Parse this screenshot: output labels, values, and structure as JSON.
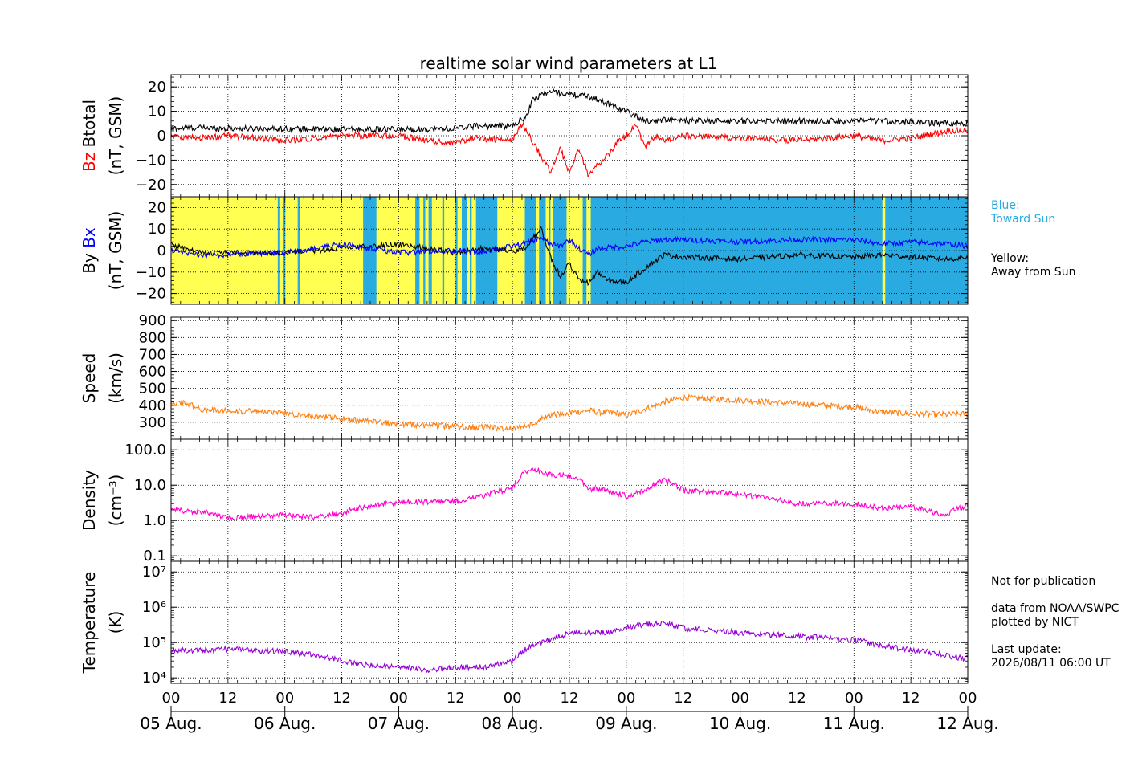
{
  "chart_data": {
    "title": "realtime solar wind parameters at L1",
    "type": "line",
    "x_axis": {
      "hour_ticks": [
        "00",
        "12",
        "00",
        "12",
        "00",
        "12",
        "00",
        "12",
        "00",
        "12",
        "00",
        "12",
        "00",
        "12",
        "00"
      ],
      "date_labels": [
        "05 Aug.",
        "06 Aug.",
        "07 Aug.",
        "08 Aug.",
        "09 Aug.",
        "10 Aug.",
        "11 Aug.",
        "12 Aug."
      ],
      "range_hours": [
        0,
        168
      ]
    },
    "panels": [
      {
        "id": "btotal-bz",
        "ylabel_parts": [
          {
            "text": "Bz",
            "color": "#ff0000"
          },
          {
            "text": "Btotal",
            "color": "#000000"
          }
        ],
        "ylabel_unit": "(nT, GSM)",
        "ylim": [
          -25,
          25
        ],
        "scale": "linear",
        "yticks": [
          -20,
          -10,
          0,
          10,
          20
        ],
        "ytick_labels": [
          "−20",
          "−10",
          "0",
          "10",
          "20"
        ],
        "series": [
          {
            "name": "Btotal",
            "color": "#000000",
            "x": [
              0,
              6,
              12,
              24,
              36,
              48,
              60,
              64,
              72,
              75,
              76,
              78,
              80,
              84,
              88,
              90,
              96,
              100,
              102,
              104,
              108,
              120,
              132,
              144,
              150,
              156,
              164,
              168
            ],
            "y": [
              3,
              3.2,
              3,
              2.8,
              2.5,
              2.5,
              2.8,
              4,
              4,
              8,
              14,
              17,
              18,
              17,
              16,
              15,
              10,
              6,
              6,
              6.5,
              6,
              6,
              6,
              6,
              6,
              5.5,
              5,
              5
            ]
          },
          {
            "name": "Bz",
            "color": "#ff0000",
            "x": [
              0,
              6,
              12,
              24,
              30,
              36,
              48,
              54,
              60,
              64,
              72,
              74,
              78,
              80,
              82,
              84,
              86,
              88,
              90,
              92,
              94,
              96,
              98,
              100,
              102,
              104,
              108,
              120,
              132,
              144,
              150,
              156,
              164,
              168
            ],
            "y": [
              0,
              -1,
              0,
              -2,
              -1,
              0,
              0,
              -2,
              -3,
              -1,
              -2,
              5,
              -8,
              -15,
              -5,
              -15,
              -5,
              -16,
              -12,
              -8,
              -3,
              0,
              5,
              -5,
              0,
              -2,
              0,
              -1,
              -2,
              0,
              -2,
              -1,
              2,
              2
            ]
          }
        ]
      },
      {
        "id": "by-bx",
        "ylabel_parts": [
          {
            "text": "By",
            "color": "#000000"
          },
          {
            "text": "Bx",
            "color": "#0000ff"
          }
        ],
        "ylabel_unit": "(nT, GSM)",
        "ylim": [
          -25,
          25
        ],
        "scale": "linear",
        "yticks": [
          -20,
          -10,
          0,
          10,
          20
        ],
        "ytick_labels": [
          "−20",
          "−10",
          "0",
          "10",
          "20"
        ],
        "background_bands": {
          "toward_color": "#29abe2",
          "away_color": "#ffff52",
          "toward_intervals_hours": [
            [
              22.5,
              23
            ],
            [
              23.6,
              24.1
            ],
            [
              26.7,
              27.2
            ],
            [
              40.5,
              43.3
            ],
            [
              51.5,
              52.4
            ],
            [
              53.2,
              53.6
            ],
            [
              54.3,
              55
            ],
            [
              57.2,
              57.6
            ],
            [
              60,
              60.4
            ],
            [
              61.3,
              62.4
            ],
            [
              63,
              63.4
            ],
            [
              64.3,
              68.8
            ],
            [
              74.6,
              77
            ],
            [
              77.6,
              79
            ],
            [
              79.6,
              80
            ],
            [
              80.6,
              83.4
            ],
            [
              86.8,
              87.6
            ],
            [
              88.5,
              150
            ],
            [
              150.6,
              168
            ]
          ]
        },
        "series": [
          {
            "name": "By",
            "color": "#000000",
            "x": [
              0,
              6,
              12,
              24,
              36,
              48,
              60,
              64,
              72,
              74,
              76,
              78,
              80,
              82,
              84,
              86,
              88,
              90,
              92,
              96,
              100,
              104,
              108,
              120,
              132,
              144,
              150,
              156,
              164,
              168
            ],
            "y": [
              3,
              -1,
              -1,
              -1,
              1,
              3,
              -1,
              1,
              0,
              0,
              5,
              10,
              -3,
              -12,
              -6,
              -14,
              -15,
              -10,
              -14,
              -15,
              -8,
              -2,
              -3,
              -4,
              -2,
              -3,
              -2,
              -3,
              -4,
              -3
            ]
          },
          {
            "name": "Bx",
            "color": "#0000ff",
            "x": [
              0,
              6,
              12,
              24,
              36,
              48,
              60,
              64,
              72,
              76,
              78,
              80,
              82,
              84,
              86,
              88,
              90,
              96,
              100,
              104,
              108,
              120,
              132,
              144,
              150,
              156,
              164,
              168
            ],
            "y": [
              0,
              -2,
              -2,
              -1,
              3,
              -1,
              0,
              -1,
              2,
              4,
              6,
              3,
              2,
              5,
              1,
              -2,
              1,
              2,
              4,
              5,
              5,
              4,
              5,
              5,
              3,
              4,
              3,
              2
            ]
          }
        ]
      },
      {
        "id": "speed",
        "ylabel_parts": [
          {
            "text": "Speed",
            "color": "#000000"
          }
        ],
        "ylabel_unit": "(km/s)",
        "ylim": [
          200,
          920
        ],
        "scale": "linear",
        "yticks": [
          300,
          400,
          500,
          600,
          700,
          800,
          900
        ],
        "ytick_labels": [
          "300",
          "400",
          "500",
          "600",
          "700",
          "800",
          "900"
        ],
        "series": [
          {
            "name": "Speed",
            "color": "#ff7f0e",
            "x": [
              0,
              4,
              6,
              12,
              24,
              36,
              48,
              60,
              66,
              72,
              76,
              80,
              84,
              88,
              90,
              94,
              96,
              100,
              102,
              104,
              108,
              112,
              120,
              132,
              144,
              150,
              156,
              164,
              168
            ],
            "y": [
              420,
              410,
              375,
              370,
              355,
              320,
              290,
              275,
              270,
              262,
              290,
              345,
              355,
              370,
              360,
              355,
              340,
              380,
              395,
              420,
              445,
              440,
              430,
              410,
              390,
              360,
              350,
              345,
              350
            ]
          }
        ]
      },
      {
        "id": "density",
        "ylabel_parts": [
          {
            "text": "Density",
            "color": "#000000"
          }
        ],
        "ylabel_unit": "(cm⁻³)",
        "ylim": [
          0.07,
          200
        ],
        "scale": "log",
        "yticks": [
          0.1,
          1.0,
          10.0,
          100.0
        ],
        "ytick_labels": [
          "0.1",
          "1.0",
          "10.0",
          "100.0"
        ],
        "series": [
          {
            "name": "Density",
            "color": "#ff00cc",
            "x": [
              0,
              6,
              12,
              24,
              30,
              36,
              42,
              48,
              54,
              60,
              66,
              72,
              76,
              80,
              84,
              86,
              88,
              92,
              96,
              100,
              104,
              108,
              120,
              132,
              144,
              150,
              156,
              162,
              164,
              168
            ],
            "y": [
              2,
              1.8,
              1.2,
              1.4,
              1.2,
              1.6,
              2.6,
              3.2,
              3.4,
              3.4,
              5,
              8,
              30,
              20,
              18,
              14,
              8,
              7,
              5,
              7,
              14,
              7,
              5.5,
              3,
              3,
              2.2,
              2.5,
              1.5,
              1.6,
              2.7
            ]
          }
        ]
      },
      {
        "id": "temperature",
        "ylabel_parts": [
          {
            "text": "Temperature",
            "color": "#000000"
          }
        ],
        "ylabel_unit": "(K)",
        "ylim": [
          7000,
          20000000
        ],
        "scale": "log",
        "yticks": [
          10000,
          100000,
          1000000,
          10000000
        ],
        "ytick_labels": [
          "10⁴",
          "10⁵",
          "10⁶",
          "10⁷"
        ],
        "series": [
          {
            "name": "Temperature",
            "color": "#9400d3",
            "x": [
              0,
              6,
              12,
              24,
              30,
              36,
              42,
              48,
              54,
              60,
              66,
              72,
              76,
              80,
              84,
              88,
              92,
              96,
              100,
              104,
              108,
              120,
              132,
              144,
              150,
              156,
              162,
              164,
              168
            ],
            "y": [
              60000,
              60000,
              65000,
              55000,
              45000,
              30000,
              22000,
              20000,
              16000,
              20000,
              20000,
              28000,
              80000,
              120000,
              180000,
              200000,
              190000,
              280000,
              320000,
              360000,
              260000,
              190000,
              150000,
              120000,
              80000,
              60000,
              50000,
              40000,
              35000
            ]
          }
        ]
      }
    ],
    "grid": "dotted"
  },
  "notes": {
    "blue": "Blue:\nToward Sun",
    "yellow": "Yellow:\nAway from Sun",
    "footer": "Not for publication\n\ndata from NOAA/SWPC\nplotted by NICT\n\nLast update:\n2026/08/11 06:00 UT"
  }
}
